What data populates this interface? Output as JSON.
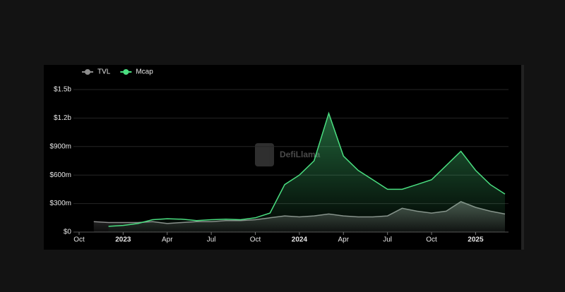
{
  "chart_data": {
    "type": "line",
    "watermark": "DefiLlama",
    "x": [
      "2022-11",
      "2022-12",
      "2023-01",
      "2023-02",
      "2023-03",
      "2023-04",
      "2023-05",
      "2023-06",
      "2023-07",
      "2023-08",
      "2023-09",
      "2023-10",
      "2023-11",
      "2023-12",
      "2024-01",
      "2024-02",
      "2024-03",
      "2024-04",
      "2024-05",
      "2024-06",
      "2024-07",
      "2024-08",
      "2024-09",
      "2024-10",
      "2024-11",
      "2024-12",
      "2025-01",
      "2025-02",
      "2025-03"
    ],
    "series": [
      {
        "name": "TVL",
        "color": "#8c8c8c",
        "values": [
          110000000,
          100000000,
          100000000,
          100000000,
          110000000,
          90000000,
          100000000,
          110000000,
          110000000,
          120000000,
          120000000,
          130000000,
          150000000,
          170000000,
          160000000,
          170000000,
          190000000,
          170000000,
          160000000,
          160000000,
          170000000,
          250000000,
          220000000,
          200000000,
          220000000,
          320000000,
          260000000,
          220000000,
          190000000
        ]
      },
      {
        "name": "Mcap",
        "color": "#4ade80",
        "values": [
          null,
          60000000,
          70000000,
          90000000,
          130000000,
          140000000,
          135000000,
          120000000,
          130000000,
          135000000,
          130000000,
          150000000,
          200000000,
          500000000,
          600000000,
          750000000,
          1250000000,
          800000000,
          650000000,
          550000000,
          450000000,
          450000000,
          500000000,
          550000000,
          700000000,
          850000000,
          650000000,
          500000000,
          400000000
        ]
      }
    ],
    "xlim": [
      "2022-10",
      "2025-03"
    ],
    "xticks": [
      {
        "value": "2022-10",
        "label": "Oct"
      },
      {
        "value": "2023-01",
        "label": "2023"
      },
      {
        "value": "2023-04",
        "label": "Apr"
      },
      {
        "value": "2023-07",
        "label": "Jul"
      },
      {
        "value": "2023-10",
        "label": "Oct"
      },
      {
        "value": "2024-01",
        "label": "2024"
      },
      {
        "value": "2024-04",
        "label": "Apr"
      },
      {
        "value": "2024-07",
        "label": "Jul"
      },
      {
        "value": "2024-10",
        "label": "Oct"
      },
      {
        "value": "2025-01",
        "label": "2025"
      }
    ],
    "ylim": [
      0,
      1500000000
    ],
    "yticks": [
      {
        "value": 0,
        "label": "$0"
      },
      {
        "value": 300000000,
        "label": "$300m"
      },
      {
        "value": 600000000,
        "label": "$600m"
      },
      {
        "value": 900000000,
        "label": "$900m"
      },
      {
        "value": 1200000000,
        "label": "$1.2b"
      },
      {
        "value": 1500000000,
        "label": "$1.5b"
      }
    ],
    "grid": true,
    "legend": "top-left"
  }
}
